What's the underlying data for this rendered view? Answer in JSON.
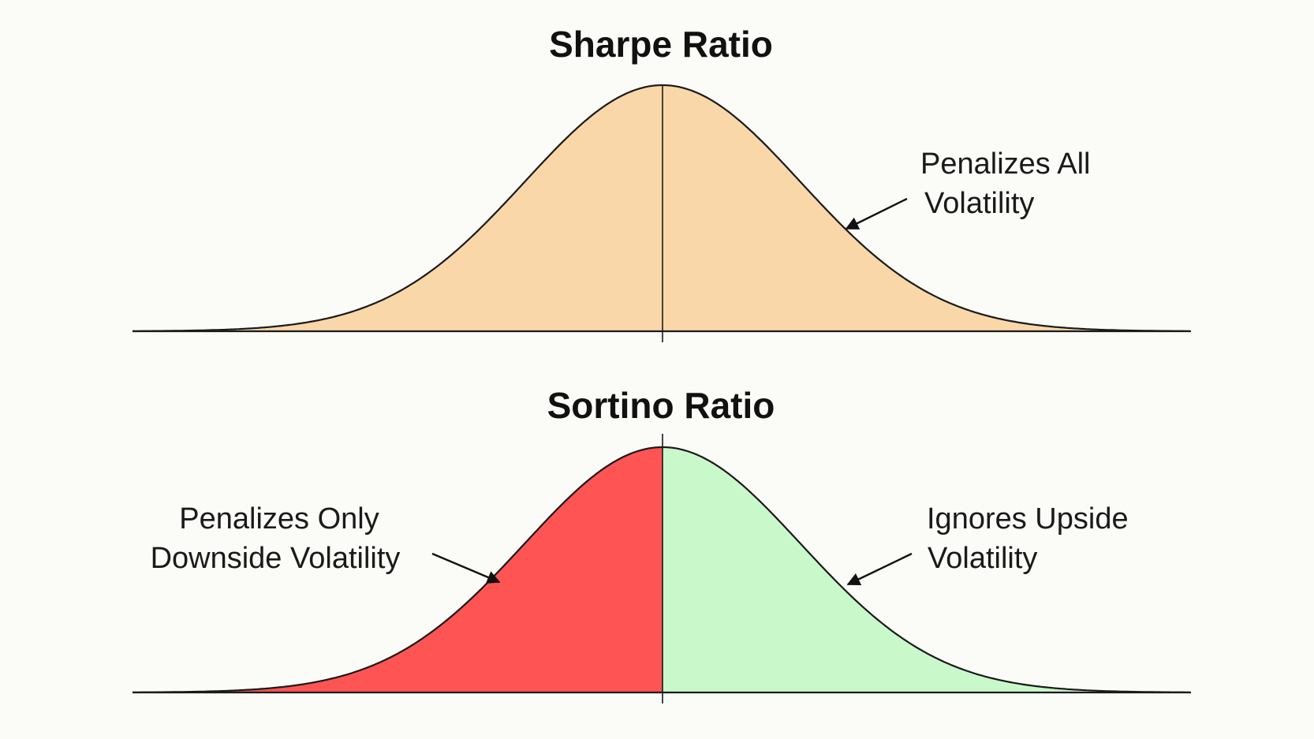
{
  "panels": [
    {
      "title": "Sharpe Ratio",
      "fills": {
        "left": "#fad7a8",
        "right": "#fad7a8"
      },
      "annotations": [
        {
          "lines": [
            "Penalizes All",
            "Volatility"
          ]
        }
      ]
    },
    {
      "title": "Sortino Ratio",
      "fills": {
        "left": "#ff5454",
        "right": "#c9f9cb"
      },
      "annotations": [
        {
          "lines": [
            "Penalizes Only",
            "Downside Volatility"
          ]
        },
        {
          "lines": [
            "Ignores Upside",
            "Volatility"
          ]
        }
      ]
    }
  ],
  "colors": {
    "background": "#fbfbf8",
    "line": "#1a1a1a"
  }
}
